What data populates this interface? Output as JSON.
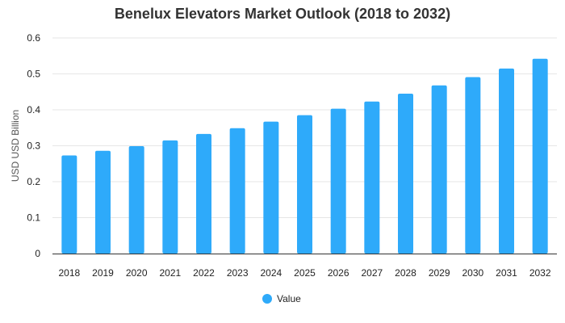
{
  "chart_data": {
    "type": "bar",
    "title": "Benelux Elevators Market Outlook (2018 to 2032)",
    "xlabel": "",
    "ylabel": "USD USD Billion",
    "ylim": [
      0,
      0.6
    ],
    "yticks": [
      "0",
      "0.1",
      "0.2",
      "0.3",
      "0.4",
      "0.5",
      "0.6"
    ],
    "categories": [
      "2018",
      "2019",
      "2020",
      "2021",
      "2022",
      "2023",
      "2024",
      "2025",
      "2026",
      "2027",
      "2028",
      "2029",
      "2030",
      "2031",
      "2032"
    ],
    "series": [
      {
        "name": "Value",
        "color": "#2eaafa",
        "values": [
          0.273,
          0.286,
          0.299,
          0.315,
          0.333,
          0.349,
          0.367,
          0.385,
          0.403,
          0.423,
          0.445,
          0.468,
          0.491,
          0.515,
          0.542
        ]
      }
    ],
    "grid": true,
    "legend_position": "bottom-center"
  }
}
